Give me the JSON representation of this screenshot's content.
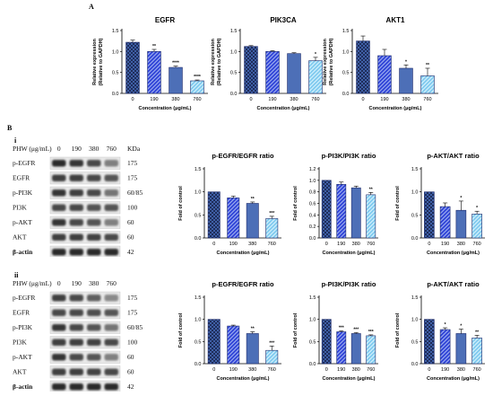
{
  "figure": {
    "panel_a": "A",
    "panel_b": "B",
    "sub_i": "i",
    "sub_ii": "ii"
  },
  "colors": {
    "bar_outline": "#1d2a6b",
    "dark_checker": "#1e2d5a",
    "dark_checker_alt": "#3f5fa6",
    "blue_stripe": "#2b3fd6",
    "mid_blue": "#4d6fb7",
    "light_stripe": "#7ac7ee"
  },
  "blots": [
    {
      "header_label": "PHW (μg/mL)",
      "conc_labels": [
        "0",
        "190",
        "380",
        "760"
      ],
      "kda_label": "KDa",
      "rows": [
        {
          "label": "p-EGFR",
          "kda": "175",
          "intensity": [
            0.9,
            0.85,
            0.75,
            0.5
          ]
        },
        {
          "label": "EGFR",
          "kda": "175",
          "intensity": [
            0.8,
            0.8,
            0.75,
            0.7
          ]
        },
        {
          "label": "p-PI3K",
          "kda": "60/85",
          "intensity": [
            0.85,
            0.8,
            0.75,
            0.55
          ]
        },
        {
          "label": "PI3K",
          "kda": "100",
          "intensity": [
            0.75,
            0.75,
            0.7,
            0.7
          ]
        },
        {
          "label": "p-AKT",
          "kda": "60",
          "intensity": [
            0.85,
            0.75,
            0.7,
            0.5
          ]
        },
        {
          "label": "AKT",
          "kda": "60",
          "intensity": [
            0.8,
            0.8,
            0.78,
            0.75
          ]
        },
        {
          "label": "β-actin",
          "kda": "42",
          "intensity": [
            0.9,
            0.9,
            0.9,
            0.9
          ]
        }
      ]
    },
    {
      "header_label": "PHW (μg/mL)",
      "conc_labels": [
        "0",
        "190",
        "380",
        "760"
      ],
      "kda_label": "",
      "rows": [
        {
          "label": "p-EGFR",
          "kda": "175",
          "intensity": [
            0.8,
            0.75,
            0.65,
            0.45
          ]
        },
        {
          "label": "EGFR",
          "kda": "175",
          "intensity": [
            0.75,
            0.75,
            0.72,
            0.7
          ]
        },
        {
          "label": "p-PI3K",
          "kda": "60/85",
          "intensity": [
            0.85,
            0.75,
            0.7,
            0.55
          ]
        },
        {
          "label": "PI3K",
          "kda": "100",
          "intensity": [
            0.8,
            0.8,
            0.78,
            0.75
          ]
        },
        {
          "label": "p-AKT",
          "kda": "60",
          "intensity": [
            0.85,
            0.75,
            0.7,
            0.5
          ]
        },
        {
          "label": "AKT",
          "kda": "60",
          "intensity": [
            0.8,
            0.8,
            0.78,
            0.75
          ]
        },
        {
          "label": "β-actin",
          "kda": "42",
          "intensity": [
            0.9,
            0.9,
            0.9,
            0.9
          ]
        }
      ]
    }
  ],
  "chart_data": [
    {
      "id": "a1",
      "type": "bar",
      "title": "EGFR",
      "ylabel": "Relative expression\n(Relative to GAPDH)",
      "xlabel": "Concentration  (μg/mL)",
      "categories": [
        "0",
        "190",
        "380",
        "760"
      ],
      "values": [
        1.22,
        1.0,
        0.62,
        0.3
      ],
      "errors": [
        0.05,
        0.05,
        0.03,
        0.02
      ],
      "sig": [
        "",
        "**",
        "****",
        "****"
      ],
      "ylim": [
        0,
        1.5
      ],
      "yticks": [
        "0.0",
        "0.5",
        "1.0",
        "1.5"
      ]
    },
    {
      "id": "a2",
      "type": "bar",
      "title": "PIK3CA",
      "ylabel": "Relative expression\n(Relative to GAPDH)",
      "xlabel": "Concentration  (μg/mL)",
      "categories": [
        "0",
        "190",
        "380",
        "760"
      ],
      "values": [
        1.12,
        1.0,
        0.95,
        0.78
      ],
      "errors": [
        0.02,
        0.02,
        0.02,
        0.08
      ],
      "sig": [
        "",
        "",
        "",
        "*"
      ],
      "ylim": [
        0,
        1.5
      ],
      "yticks": [
        "0.0",
        "0.5",
        "1.0",
        "1.5"
      ]
    },
    {
      "id": "a3",
      "type": "bar",
      "title": "AKT1",
      "ylabel": "Relative expression\n(Relative to GAPDH)",
      "xlabel": "Concentration  (μg/mL)",
      "categories": [
        "0",
        "190",
        "380",
        "760"
      ],
      "values": [
        1.25,
        0.9,
        0.6,
        0.42
      ],
      "errors": [
        0.12,
        0.15,
        0.08,
        0.18
      ],
      "sig": [
        "",
        "",
        "*",
        "**"
      ],
      "ylim": [
        0,
        1.5
      ],
      "yticks": [
        "0.0",
        "0.5",
        "1.0",
        "1.5"
      ]
    },
    {
      "id": "bi1",
      "type": "bar",
      "title": "p-EGFR/EGFR ratio",
      "ylabel": "Fold of control",
      "xlabel": "Concentration  (μg/mL)",
      "categories": [
        "0",
        "190",
        "380",
        "760"
      ],
      "values": [
        1.0,
        0.87,
        0.75,
        0.42
      ],
      "errors": [
        0.0,
        0.04,
        0.03,
        0.05
      ],
      "sig": [
        "",
        "",
        "**",
        "***"
      ],
      "ylim": [
        0,
        1.5
      ],
      "yticks": [
        "0.0",
        "0.5",
        "1.0",
        "1.5"
      ]
    },
    {
      "id": "bi2",
      "type": "bar",
      "title": "p-PI3K/PI3K ratio",
      "ylabel": "Fold of control",
      "xlabel": "Concentration  (μg/mL)",
      "categories": [
        "0",
        "190",
        "380",
        "760"
      ],
      "values": [
        1.0,
        0.93,
        0.87,
        0.75
      ],
      "errors": [
        0.0,
        0.04,
        0.03,
        0.04
      ],
      "sig": [
        "",
        "",
        "",
        "**"
      ],
      "ylim": [
        0,
        1.2
      ],
      "yticks": [
        "0.0",
        "0.2",
        "0.4",
        "0.6",
        "0.8",
        "1.0",
        "1.2"
      ]
    },
    {
      "id": "bi3",
      "type": "bar",
      "title": "p-AKT/AKT ratio",
      "ylabel": "Fold of control",
      "xlabel": "Concentration  (μg/mL)",
      "categories": [
        "0",
        "190",
        "380",
        "760"
      ],
      "values": [
        1.0,
        0.68,
        0.6,
        0.52
      ],
      "errors": [
        0.0,
        0.08,
        0.2,
        0.06
      ],
      "sig": [
        "",
        "",
        "*",
        "*"
      ],
      "ylim": [
        0,
        1.5
      ],
      "yticks": [
        "0.0",
        "0.5",
        "1.0",
        "1.5"
      ]
    },
    {
      "id": "bii1",
      "type": "bar",
      "title": "p-EGFR/EGFR  ratio",
      "ylabel": "Fold of control",
      "xlabel": "Concentration  (μg/mL)",
      "categories": [
        "0",
        "190",
        "380",
        "760"
      ],
      "values": [
        1.0,
        0.85,
        0.68,
        0.3
      ],
      "errors": [
        0.0,
        0.02,
        0.04,
        0.1
      ],
      "sig": [
        "",
        "",
        "**",
        "***"
      ],
      "ylim": [
        0,
        1.5
      ],
      "yticks": [
        "0.0",
        "0.5",
        "1.0",
        "1.5"
      ]
    },
    {
      "id": "bii2",
      "type": "bar",
      "title": "p-PI3K/PI3K ratio",
      "ylabel": "Fold of control",
      "xlabel": "Concentration  (μg/mL)",
      "categories": [
        "0",
        "190",
        "380",
        "760"
      ],
      "values": [
        1.0,
        0.72,
        0.68,
        0.63
      ],
      "errors": [
        0.0,
        0.02,
        0.02,
        0.02
      ],
      "sig": [
        "",
        "***",
        "***",
        "***"
      ],
      "ylim": [
        0,
        1.5
      ],
      "yticks": [
        "0.0",
        "0.5",
        "1.0",
        "1.5"
      ]
    },
    {
      "id": "bii3",
      "type": "bar",
      "title": "p-AKT/AKT ratio",
      "ylabel": "Fold of control",
      "xlabel": "Concentration  (μg/mL)",
      "categories": [
        "0",
        "190",
        "380",
        "760"
      ],
      "values": [
        1.0,
        0.77,
        0.68,
        0.58
      ],
      "errors": [
        0.0,
        0.04,
        0.1,
        0.06
      ],
      "sig": [
        "",
        "*",
        "*",
        "**"
      ],
      "ylim": [
        0,
        1.5
      ],
      "yticks": [
        "0.0",
        "0.5",
        "1.0",
        "1.5"
      ]
    }
  ]
}
